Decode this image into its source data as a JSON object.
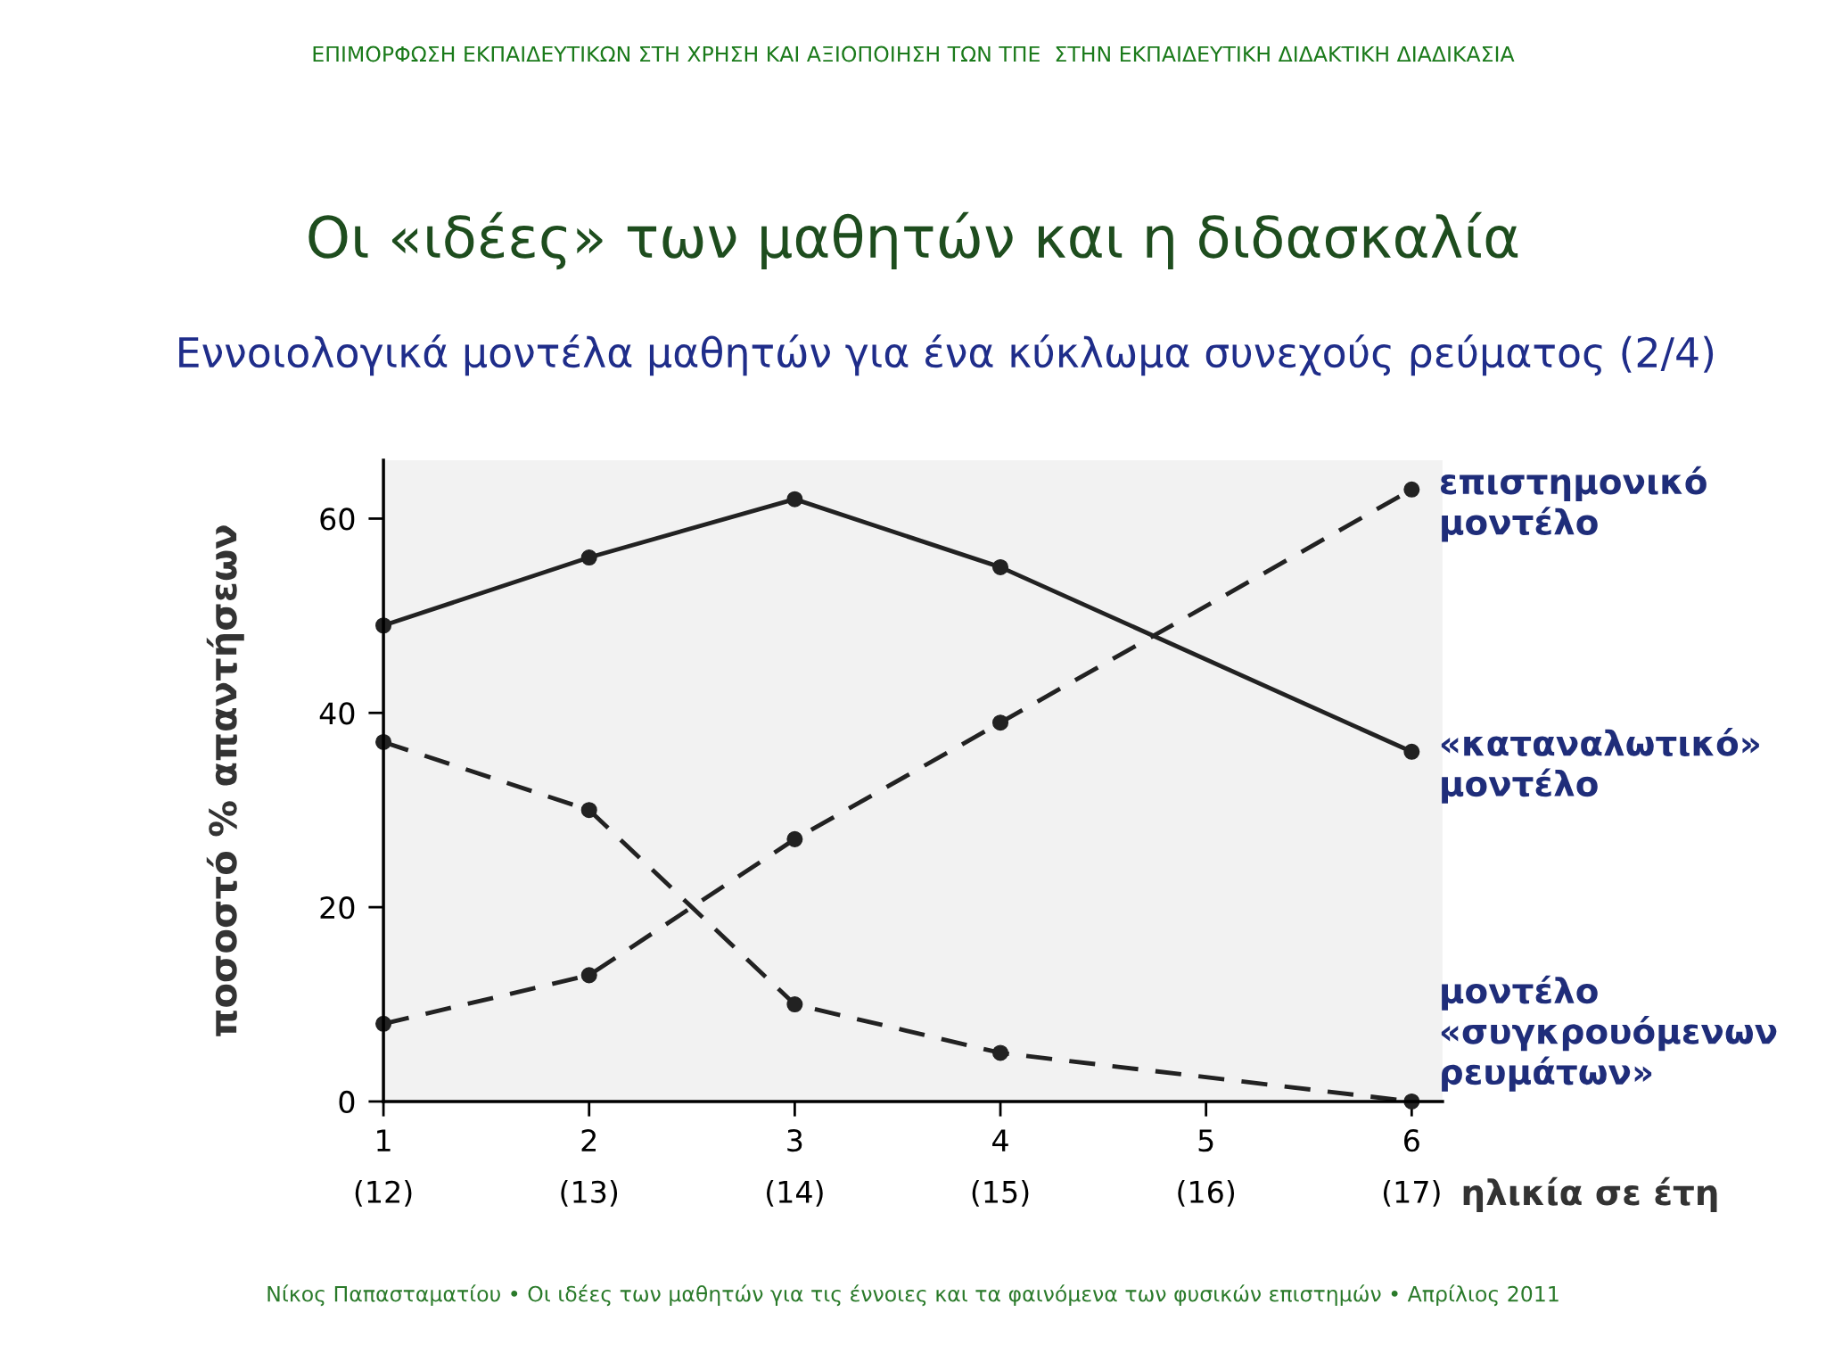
{
  "chart_data": {
    "type": "line",
    "title": "Οι «ιδέες» των μαθητών και η διδασκαλία",
    "subtitle": "Εννοιολογικά μοντέλα μαθητών για ένα κύκλωμα συνεχούς ρεύματος (2/4)",
    "xlabel": "ηλικία σε έτη",
    "ylabel": "ποσοστό % απαντήσεων",
    "annotations": [
      "ΕΠΙΜΟΡΦΩΣΗ ΕΚΠΑΙΔΕΥΤΙΚΩΝ ΣΤΗ ΧΡΗΣΗ ΚΑΙ ΑΞΙΟΠΟΙΗΣΗ ΤΩΝ ΤΠΕ  ΣΤΗΝ ΕΚΠΑΙΔΕΥΤΙΚΗ ΔΙΔΑΚΤΙΚΗ ΔΙΑΔΙΚΑΣΙΑ",
      "Νίκος Παπασταματίου • Οι ιδέες των μαθητών για τις έννοιες και τα φαινόμενα των φυσικών επιστημών • Απρίλιος 2011"
    ],
    "ylim": [
      0,
      66
    ],
    "categories": [
      "1\n(12)",
      "2\n(13)",
      "3\n(14)",
      "4\n(15)",
      "5\n(16)",
      "6\n(17)"
    ],
    "yticks": [
      0,
      20,
      40,
      60
    ],
    "grid": false,
    "legend": false,
    "marker": "circle",
    "series": [
      {
        "name": "επιστημονικό μοντέλο",
        "color": "#222222",
        "line_style": "dashed",
        "values": [
          8,
          13,
          27,
          39,
          null,
          63
        ]
      },
      {
        "name": "«καταναλωτικό» μοντέλο",
        "color": "#222222",
        "line_style": "solid",
        "values": [
          49,
          56,
          62,
          55,
          null,
          36
        ]
      },
      {
        "name": "μοντέλο «συγκρουόμενων ρευμάτων»",
        "color": "#222222",
        "line_style": "dashed",
        "values": [
          37,
          30,
          10,
          5,
          null,
          0
        ]
      }
    ]
  }
}
